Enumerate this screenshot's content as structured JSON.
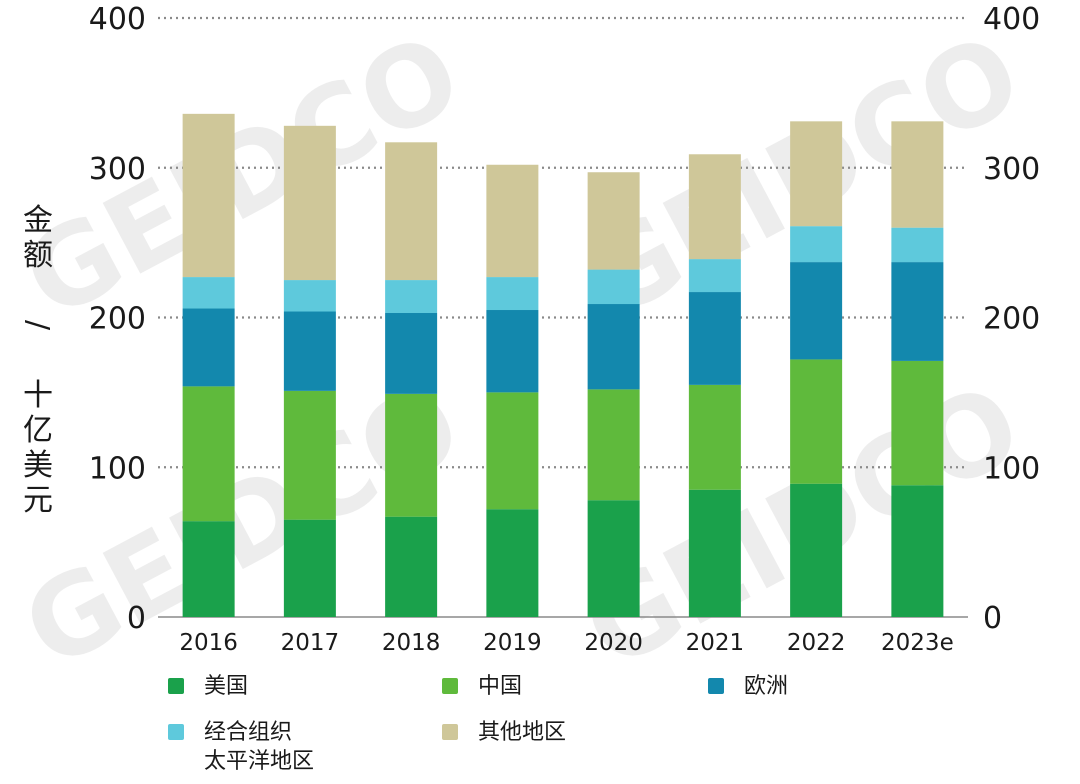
{
  "chart_data": {
    "type": "bar",
    "stacked": true,
    "ylabel": "金额 / 十亿美元",
    "ylim": [
      0,
      400
    ],
    "yticks": [
      0,
      100,
      200,
      300,
      400
    ],
    "grid": true,
    "legend_position": "bottom",
    "categories": [
      "2016",
      "2017",
      "2018",
      "2019",
      "2020",
      "2021",
      "2022",
      "2023e"
    ],
    "series": [
      {
        "name": "美国",
        "color": "#1aa14b",
        "values": [
          64,
          65,
          67,
          72,
          78,
          85,
          89,
          88
        ]
      },
      {
        "name": "中国",
        "color": "#5fba3c",
        "values": [
          90,
          86,
          82,
          78,
          74,
          70,
          83,
          83
        ]
      },
      {
        "name": "欧洲",
        "color": "#1388ad",
        "values": [
          52,
          53,
          54,
          55,
          57,
          62,
          65,
          66
        ]
      },
      {
        "name": "经合组织\n太平洋地区",
        "color": "#5ec9dc",
        "values": [
          21,
          21,
          22,
          22,
          23,
          22,
          24,
          23
        ]
      },
      {
        "name": "其他地区",
        "color": "#cfc799",
        "values": [
          109,
          103,
          92,
          75,
          65,
          70,
          70,
          71
        ]
      }
    ]
  },
  "watermark": "GEIDCO"
}
